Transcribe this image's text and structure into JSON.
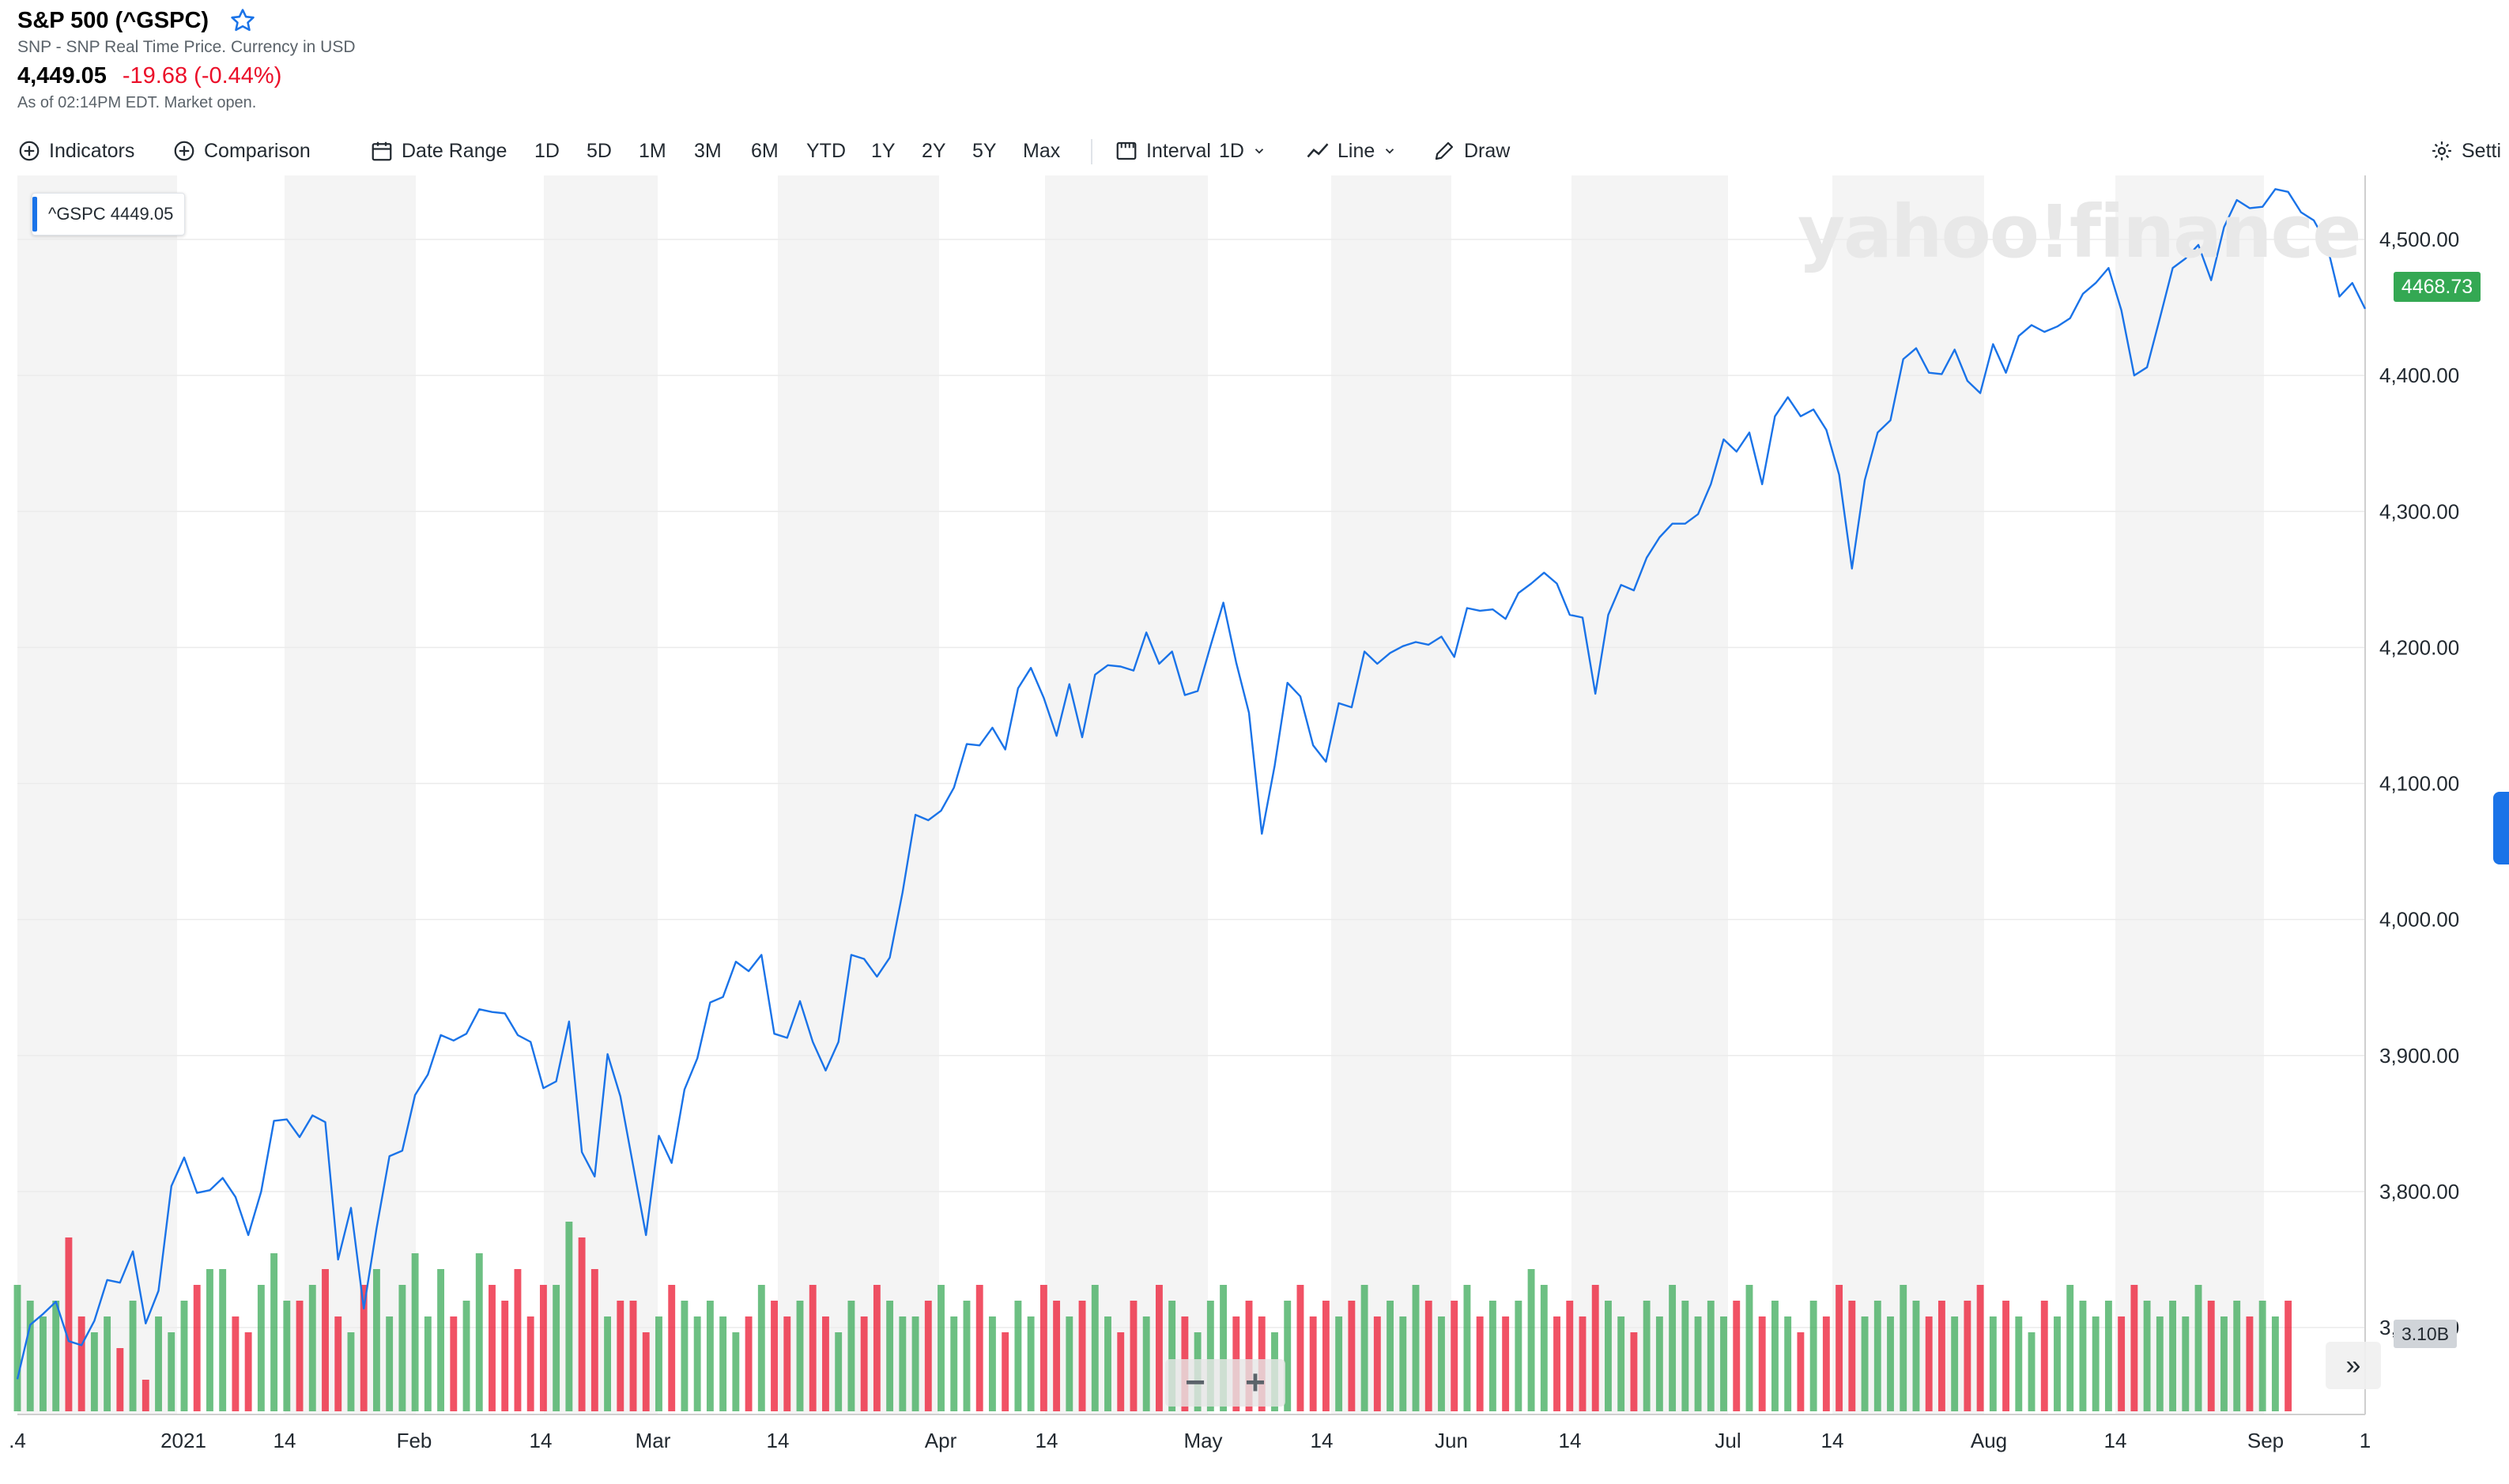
{
  "header": {
    "title": "S&P 500 (^GSPC)",
    "subtitle": "SNP - SNP Real Time Price. Currency in USD",
    "price": "4,449.05",
    "change": "-19.68 (-0.44%)",
    "as_of": "As of 02:14PM EDT. Market open."
  },
  "toolbar": {
    "indicators": "Indicators",
    "comparison": "Comparison",
    "date_range": "Date Range",
    "ranges": [
      "1D",
      "5D",
      "1M",
      "3M",
      "6M",
      "YTD",
      "1Y",
      "2Y",
      "5Y",
      "Max"
    ],
    "interval_label": "Interval",
    "interval_value": "1D",
    "chart_type": "Line",
    "draw": "Draw",
    "settings": "Setti"
  },
  "colors": {
    "line": "#1a73e8",
    "up": "#34a853",
    "down": "#eb0f29",
    "change_negative": "#eb0f29"
  },
  "overlay": {
    "legend": "^GSPC  4449.05",
    "watermark": "yahoo!finance",
    "current_tag": "4468.73",
    "volume_tag": "3.10B",
    "expand": "»"
  },
  "chart_data": {
    "type": "line",
    "series": [
      {
        "name": "^GSPC",
        "values": [
          3662,
          3702,
          3710,
          3719,
          3690,
          3687,
          3705,
          3735,
          3733,
          3756,
          3703,
          3727,
          3804,
          3825,
          3799,
          3801,
          3810,
          3796,
          3768,
          3800,
          3852,
          3853,
          3840,
          3856,
          3851,
          3750,
          3788,
          3714,
          3773,
          3826,
          3830,
          3871,
          3886,
          3915,
          3911,
          3916,
          3934,
          3932,
          3931,
          3915,
          3910,
          3876,
          3881,
          3925,
          3829,
          3811,
          3901,
          3870,
          3819,
          3768,
          3841,
          3821,
          3875,
          3898,
          3939,
          3943,
          3969,
          3962,
          3974,
          3916,
          3913,
          3940,
          3910,
          3889,
          3910,
          3974,
          3971,
          3958,
          3972,
          4020,
          4077,
          4073,
          4080,
          4097,
          4129,
          4128,
          4141,
          4125,
          4170,
          4185,
          4163,
          4135,
          4173,
          4134,
          4180,
          4187,
          4186,
          4183,
          4211,
          4188,
          4197,
          4165,
          4168,
          4201,
          4233,
          4189,
          4152,
          4063,
          4113,
          4174,
          4164,
          4128,
          4116,
          4159,
          4156,
          4197,
          4188,
          4196,
          4201,
          4204,
          4202,
          4208,
          4193,
          4229,
          4227,
          4228,
          4221,
          4240,
          4247,
          4255,
          4247,
          4224,
          4222,
          4166,
          4224,
          4246,
          4242,
          4266,
          4281,
          4291,
          4291,
          4298,
          4320,
          4353,
          4344,
          4358,
          4320,
          4370,
          4384,
          4370,
          4375,
          4360,
          4327,
          4258,
          4323,
          4358,
          4367,
          4412,
          4420,
          4402,
          4401,
          4419,
          4396,
          4387,
          4423,
          4402,
          4429,
          4437,
          4432,
          4436,
          4442,
          4460,
          4468,
          4479,
          4448,
          4400,
          4406,
          4442,
          4479,
          4486,
          4496,
          4470,
          4509,
          4529,
          4523,
          4524,
          4537,
          4535,
          4520,
          4514,
          4497,
          4458,
          4468,
          4449
        ]
      }
    ],
    "x_labels": [
      ".4",
      "2021",
      "14",
      "Feb",
      "14",
      "Mar",
      "14",
      "Apr",
      "14",
      "May",
      "14",
      "Jun",
      "14",
      "Jul",
      "14",
      "Aug",
      "14",
      "Sep",
      "1"
    ],
    "y_ticks": [
      "4,500.00",
      "4,400.00",
      "4,300.00",
      "4,200.00",
      "4,100.00",
      "4,000.00",
      "3,900.00",
      "3,800.00",
      "3,700.00"
    ],
    "ylim": [
      3650,
      4550
    ],
    "volume": {
      "values_billion": [
        3.2,
        3.1,
        3.0,
        3.1,
        3.5,
        3.0,
        2.9,
        3.0,
        2.8,
        3.1,
        2.6,
        3.0,
        2.9,
        3.1,
        3.2,
        3.3,
        3.3,
        3.0,
        2.9,
        3.2,
        3.4,
        3.1,
        3.1,
        3.2,
        3.3,
        3.0,
        2.9,
        3.2,
        3.3,
        3.0,
        3.2,
        3.4,
        3.0,
        3.3,
        3.0,
        3.1,
        3.4,
        3.2,
        3.1,
        3.3,
        3.0,
        3.2,
        3.2,
        3.6,
        3.5,
        3.3,
        3.0,
        3.1,
        3.1,
        2.9,
        3.0,
        3.2,
        3.1,
        3.0,
        3.1,
        3.0,
        2.9,
        3.0,
        3.2,
        3.1,
        3.0,
        3.1,
        3.2,
        3.0,
        2.9,
        3.1,
        3.0,
        3.2,
        3.1,
        3.0,
        3.0,
        3.1,
        3.2,
        3.0,
        3.1,
        3.2,
        3.0,
        2.9,
        3.1,
        3.0,
        3.2,
        3.1,
        3.0,
        3.1,
        3.2,
        3.0,
        2.9,
        3.1,
        3.0,
        3.2,
        3.1,
        3.0,
        2.9,
        3.1,
        3.2,
        3.0,
        3.1,
        3.0,
        2.9,
        3.1,
        3.2,
        3.0,
        3.1,
        3.0,
        3.1,
        3.2,
        3.0,
        3.1,
        3.0,
        3.2,
        3.1,
        3.0,
        3.1,
        3.2,
        3.0,
        3.1,
        3.0,
        3.1,
        3.3,
        3.2,
        3.0,
        3.1,
        3.0,
        3.2,
        3.1,
        3.0,
        2.9,
        3.1,
        3.0,
        3.2,
        3.1,
        3.0,
        3.1,
        3.0,
        3.1,
        3.2,
        3.0,
        3.1,
        3.0,
        2.9,
        3.1,
        3.0,
        3.2,
        3.1,
        3.0,
        3.1,
        3.0,
        3.2,
        3.1,
        3.0,
        3.1,
        3.0,
        3.1,
        3.2,
        3.0,
        3.1,
        3.0,
        2.9,
        3.1,
        3.0,
        3.2,
        3.1,
        3.0,
        3.1,
        3.0,
        3.2,
        3.1,
        3.0,
        3.1,
        3.0,
        3.2,
        3.1,
        3.0,
        3.1,
        3.0,
        3.1,
        3.0,
        3.1
      ]
    }
  }
}
